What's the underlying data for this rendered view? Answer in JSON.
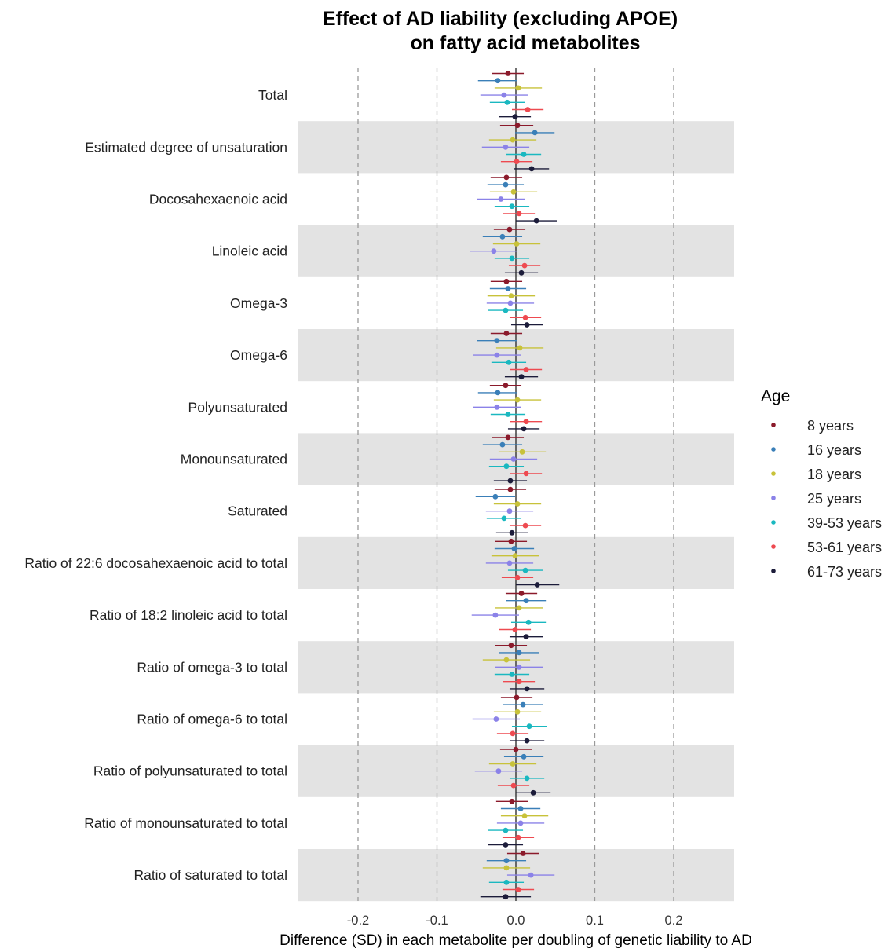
{
  "chart_data": {
    "type": "forest",
    "title_lines": [
      "Effect of AD liability (excluding APOE)",
      "on fatty acid metabolites"
    ],
    "xlabel": "Difference (SD) in each metabolite per doubling of genetic liability to AD",
    "xlim": [
      -0.275,
      0.275
    ],
    "xticks": [
      -0.2,
      -0.1,
      0.0,
      0.1,
      0.2
    ],
    "xtick_labels": [
      "-0.2",
      "-0.1",
      "0.0",
      "0.1",
      "0.2"
    ],
    "vlines_dashed": [
      -0.2,
      -0.1,
      0.1,
      0.2
    ],
    "vline_solid": 0.0,
    "banded_rows": true,
    "categories": [
      "Total",
      "Estimated degree of unsaturation",
      "Docosahexaenoic acid",
      "Linoleic acid",
      "Omega-3",
      "Omega-6",
      "Polyunsaturated",
      "Monounsaturated",
      "Saturated",
      "Ratio of 22:6 docosahexaenoic acid to total",
      "Ratio of 18:2 linoleic acid to total",
      "Ratio of omega-3 to total",
      "Ratio of omega-6 to total",
      "Ratio of polyunsaturated to total",
      "Ratio of monounsaturated to total",
      "Ratio of saturated to total"
    ],
    "legend": {
      "title": "Age",
      "position": "right"
    },
    "series": [
      {
        "name": "8 years",
        "color": "#8b1a2b",
        "estimates": [
          -0.01,
          0.002,
          -0.012,
          -0.008,
          -0.012,
          -0.012,
          -0.013,
          -0.01,
          -0.007,
          -0.006,
          0.007,
          -0.006,
          0.001,
          0.0,
          -0.005,
          0.009
        ],
        "ci_low": [
          -0.03,
          -0.02,
          -0.032,
          -0.028,
          -0.032,
          -0.032,
          -0.033,
          -0.03,
          -0.027,
          -0.026,
          -0.013,
          -0.026,
          -0.019,
          -0.02,
          -0.025,
          -0.011
        ],
        "ci_high": [
          0.01,
          0.022,
          0.008,
          0.012,
          0.008,
          0.008,
          0.007,
          0.01,
          0.013,
          0.014,
          0.027,
          0.014,
          0.021,
          0.02,
          0.015,
          0.029
        ]
      },
      {
        "name": "16 years",
        "color": "#3a7fb8",
        "estimates": [
          -0.023,
          0.024,
          -0.013,
          -0.017,
          -0.01,
          -0.024,
          -0.023,
          -0.017,
          -0.026,
          -0.002,
          0.013,
          0.004,
          0.009,
          0.01,
          0.006,
          -0.012
        ],
        "ci_low": [
          -0.048,
          -0.001,
          -0.036,
          -0.042,
          -0.033,
          -0.049,
          -0.048,
          -0.042,
          -0.051,
          -0.027,
          -0.012,
          -0.021,
          -0.016,
          -0.015,
          -0.019,
          -0.037
        ],
        "ci_high": [
          0.002,
          0.049,
          0.01,
          0.008,
          0.013,
          0.001,
          0.002,
          0.008,
          -0.001,
          0.023,
          0.038,
          0.029,
          0.034,
          0.035,
          0.031,
          0.013
        ]
      },
      {
        "name": "18 years",
        "color": "#c8c23a",
        "estimates": [
          0.003,
          -0.004,
          -0.003,
          0.001,
          -0.006,
          0.005,
          0.002,
          0.008,
          0.002,
          -0.001,
          0.004,
          -0.012,
          0.002,
          -0.004,
          0.011,
          -0.012
        ],
        "ci_low": [
          -0.027,
          -0.034,
          -0.033,
          -0.029,
          -0.036,
          -0.025,
          -0.028,
          -0.022,
          -0.028,
          -0.031,
          -0.026,
          -0.042,
          -0.028,
          -0.034,
          -0.019,
          -0.042
        ],
        "ci_high": [
          0.033,
          0.026,
          0.027,
          0.031,
          0.024,
          0.035,
          0.032,
          0.038,
          0.032,
          0.029,
          0.034,
          0.018,
          0.032,
          0.026,
          0.041,
          0.018
        ]
      },
      {
        "name": "25 years",
        "color": "#8b82e8",
        "estimates": [
          -0.015,
          -0.013,
          -0.019,
          -0.028,
          -0.007,
          -0.024,
          -0.024,
          -0.003,
          -0.008,
          -0.008,
          -0.026,
          0.004,
          -0.025,
          -0.022,
          0.006,
          0.019
        ],
        "ci_low": [
          -0.045,
          -0.043,
          -0.049,
          -0.058,
          -0.037,
          -0.054,
          -0.054,
          -0.033,
          -0.038,
          -0.038,
          -0.056,
          -0.026,
          -0.055,
          -0.052,
          -0.024,
          -0.011
        ],
        "ci_high": [
          0.015,
          0.017,
          0.011,
          0.002,
          0.023,
          0.006,
          0.006,
          0.027,
          0.022,
          0.022,
          0.004,
          0.034,
          0.005,
          0.008,
          0.036,
          0.049
        ]
      },
      {
        "name": "39-53 years",
        "color": "#1ab8c0",
        "estimates": [
          -0.011,
          0.01,
          -0.005,
          -0.005,
          -0.013,
          -0.009,
          -0.01,
          -0.012,
          -0.015,
          0.012,
          0.016,
          -0.005,
          0.017,
          0.014,
          -0.013,
          -0.012
        ],
        "ci_low": [
          -0.033,
          -0.012,
          -0.027,
          -0.027,
          -0.035,
          -0.031,
          -0.032,
          -0.034,
          -0.037,
          -0.01,
          -0.006,
          -0.027,
          -0.005,
          -0.008,
          -0.035,
          -0.034
        ],
        "ci_high": [
          0.011,
          0.032,
          0.017,
          0.017,
          0.009,
          0.013,
          0.012,
          0.01,
          0.007,
          0.034,
          0.038,
          0.017,
          0.039,
          0.036,
          0.009,
          0.01
        ]
      },
      {
        "name": "53-61 years",
        "color": "#ee4a50",
        "estimates": [
          0.015,
          0.001,
          0.004,
          0.011,
          0.012,
          0.013,
          0.013,
          0.013,
          0.012,
          0.002,
          -0.001,
          0.004,
          -0.004,
          -0.003,
          0.003,
          0.003
        ],
        "ci_low": [
          -0.005,
          -0.019,
          -0.016,
          -0.009,
          -0.008,
          -0.007,
          -0.007,
          -0.007,
          -0.008,
          -0.018,
          -0.021,
          -0.016,
          -0.024,
          -0.023,
          -0.017,
          -0.017
        ],
        "ci_high": [
          0.035,
          0.021,
          0.024,
          0.031,
          0.032,
          0.033,
          0.033,
          0.033,
          0.032,
          0.022,
          0.019,
          0.024,
          0.016,
          0.017,
          0.023,
          0.023
        ]
      },
      {
        "name": "61-73 years",
        "color": "#1c1c3a",
        "estimates": [
          -0.001,
          0.02,
          0.026,
          0.007,
          0.014,
          0.007,
          0.01,
          -0.007,
          -0.005,
          0.027,
          0.013,
          0.014,
          0.014,
          0.022,
          -0.013,
          -0.013
        ],
        "ci_low": [
          -0.021,
          -0.002,
          0.0,
          -0.014,
          -0.006,
          -0.014,
          -0.01,
          -0.028,
          -0.025,
          0.0,
          -0.008,
          -0.008,
          -0.008,
          0.0,
          -0.035,
          -0.045
        ],
        "ci_high": [
          0.019,
          0.042,
          0.052,
          0.028,
          0.034,
          0.028,
          0.03,
          0.014,
          0.015,
          0.055,
          0.034,
          0.036,
          0.036,
          0.044,
          0.009,
          0.019
        ]
      }
    ]
  }
}
